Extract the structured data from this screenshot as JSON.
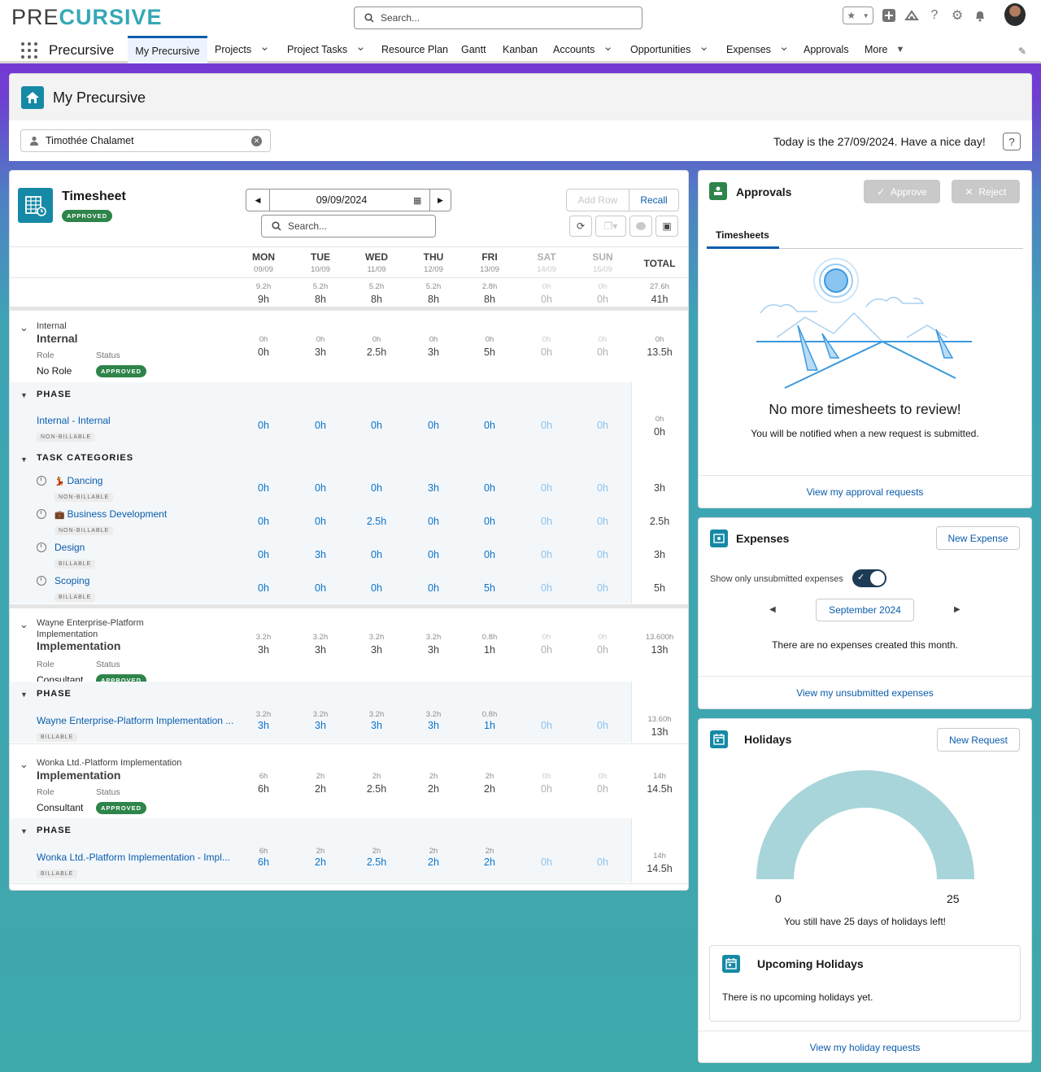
{
  "app": {
    "logo_prefix": "PRE",
    "logo_suffix": "CURSIVE",
    "name": "Precursive",
    "search_placeholder": "Search..."
  },
  "nav": [
    {
      "label": "My Precursive",
      "dropdown": false,
      "active": true
    },
    {
      "label": "Projects",
      "dropdown": true
    },
    {
      "label": "Project Tasks",
      "dropdown": true
    },
    {
      "label": "Resource Plan",
      "dropdown": false
    },
    {
      "label": "Gantt",
      "dropdown": false
    },
    {
      "label": "Kanban",
      "dropdown": false
    },
    {
      "label": "Accounts",
      "dropdown": true
    },
    {
      "label": "Opportunities",
      "dropdown": true
    },
    {
      "label": "Expenses",
      "dropdown": true
    },
    {
      "label": "Approvals",
      "dropdown": false
    },
    {
      "label": "More",
      "dropdown": true
    }
  ],
  "page": {
    "title": "My Precursive",
    "user": "Timothée Chalamet",
    "today": "Today is the 27/09/2024. Have a nice day!",
    "help": "?"
  },
  "timesheet": {
    "title": "Timesheet",
    "status": "APPROVED",
    "date": "09/09/2024",
    "add_row": "Add Row",
    "recall": "Recall",
    "search_placeholder": "Search...",
    "days": [
      {
        "name": "MON",
        "date": "09/09",
        "weekend": false
      },
      {
        "name": "TUE",
        "date": "10/09",
        "weekend": false
      },
      {
        "name": "WED",
        "date": "11/09",
        "weekend": false
      },
      {
        "name": "THU",
        "date": "12/09",
        "weekend": false
      },
      {
        "name": "FRI",
        "date": "13/09",
        "weekend": false
      },
      {
        "name": "SAT",
        "date": "14/09",
        "weekend": true
      },
      {
        "name": "SUN",
        "date": "15/09",
        "weekend": true
      }
    ],
    "total_label": "TOTAL",
    "summary": {
      "planned": [
        "9.2h",
        "5.2h",
        "5.2h",
        "5.2h",
        "2.8h",
        "0h",
        "0h",
        "27.6h"
      ],
      "actual": [
        "9h",
        "8h",
        "8h",
        "8h",
        "8h",
        "0h",
        "0h",
        "41h"
      ]
    },
    "groups": [
      {
        "small": "Internal",
        "title": "Internal",
        "role_label": "Role",
        "status_label": "Status",
        "role": "No Role",
        "status": "APPROVED",
        "planned": [
          "0h",
          "0h",
          "0h",
          "0h",
          "0h",
          "0h",
          "0h",
          "0h"
        ],
        "actual": [
          "0h",
          "3h",
          "2.5h",
          "3h",
          "5h",
          "0h",
          "0h",
          "13.5h"
        ],
        "phase_label": "PHASE",
        "phase": {
          "name": "Internal - Internal",
          "billing": "NON-BILLABLE",
          "planned": [
            "",
            "",
            "",
            "",
            "",
            "",
            "",
            "0h"
          ],
          "actual": [
            "0h",
            "0h",
            "0h",
            "0h",
            "0h",
            "0h",
            "0h",
            "0h"
          ]
        },
        "task_label": "TASK CATEGORIES",
        "tasks": [
          {
            "name": "Dancing",
            "emoji": "💃",
            "billing": "NON-BILLABLE",
            "actual": [
              "0h",
              "0h",
              "0h",
              "3h",
              "0h",
              "0h",
              "0h",
              "3h"
            ]
          },
          {
            "name": "Business Development",
            "emoji": "💼",
            "billing": "NON-BILLABLE",
            "actual": [
              "0h",
              "0h",
              "2.5h",
              "0h",
              "0h",
              "0h",
              "0h",
              "2.5h"
            ]
          },
          {
            "name": "Design",
            "emoji": "",
            "billing": "BILLABLE",
            "actual": [
              "0h",
              "3h",
              "0h",
              "0h",
              "0h",
              "0h",
              "0h",
              "3h"
            ]
          },
          {
            "name": "Scoping",
            "emoji": "",
            "billing": "BILLABLE",
            "actual": [
              "0h",
              "0h",
              "0h",
              "0h",
              "5h",
              "0h",
              "0h",
              "5h"
            ]
          }
        ]
      },
      {
        "small": "Wayne Enterprise-Platform Implementation",
        "title": "Implementation",
        "role_label": "Role",
        "status_label": "Status",
        "role": "Consultant",
        "status": "APPROVED",
        "planned": [
          "3.2h",
          "3.2h",
          "3.2h",
          "3.2h",
          "0.8h",
          "0h",
          "0h",
          "13.600h"
        ],
        "actual": [
          "3h",
          "3h",
          "3h",
          "3h",
          "1h",
          "0h",
          "0h",
          "13h"
        ],
        "phase_label": "PHASE",
        "phase": {
          "name": "Wayne Enterprise-Platform Implementation ...",
          "billing": "BILLABLE",
          "planned": [
            "3.2h",
            "3.2h",
            "3.2h",
            "3.2h",
            "0.8h",
            "",
            "",
            "13.60h"
          ],
          "actual": [
            "3h",
            "3h",
            "3h",
            "3h",
            "1h",
            "0h",
            "0h",
            "13h"
          ]
        }
      },
      {
        "small": "Wonka Ltd.-Platform Implementation",
        "title": "Implementation",
        "role_label": "Role",
        "status_label": "Status",
        "role": "Consultant",
        "status": "APPROVED",
        "planned": [
          "6h",
          "2h",
          "2h",
          "2h",
          "2h",
          "0h",
          "0h",
          "14h"
        ],
        "actual": [
          "6h",
          "2h",
          "2.5h",
          "2h",
          "2h",
          "0h",
          "0h",
          "14.5h"
        ],
        "phase_label": "PHASE",
        "phase": {
          "name": "Wonka Ltd.-Platform Implementation - Impl...",
          "billing": "BILLABLE",
          "planned": [
            "6h",
            "2h",
            "2h",
            "2h",
            "2h",
            "",
            "",
            "14h"
          ],
          "actual": [
            "6h",
            "2h",
            "2.5h",
            "2h",
            "2h",
            "0h",
            "0h",
            "14.5h"
          ]
        }
      }
    ]
  },
  "approvals": {
    "title": "Approvals",
    "approve": "Approve",
    "reject": "Reject",
    "tab": "Timesheets",
    "empty_title": "No more timesheets to review!",
    "empty_sub": "You will be notified when a new request is submitted.",
    "link": "View my approval requests"
  },
  "expenses": {
    "title": "Expenses",
    "new_button": "New Expense",
    "toggle_label": "Show only unsubmitted expenses",
    "toggle_on": true,
    "month": "September 2024",
    "empty": "There are no expenses created this month.",
    "link": "View my unsubmitted expenses"
  },
  "holidays": {
    "title": "Holidays",
    "new_button": "New Request",
    "gauge_min": "0",
    "gauge_max": "25",
    "gauge_fraction": 1.0,
    "remaining": "You still have 25 days of holidays left!",
    "upcoming_title": "Upcoming Holidays",
    "upcoming_empty": "There is no upcoming holidays yet.",
    "link": "View my holiday requests"
  },
  "colors": {
    "brand_teal": "#35a8b5",
    "primary_blue": "#0b5cab",
    "approved_green": "#2e844a",
    "gauge": "#a8d5d9"
  }
}
